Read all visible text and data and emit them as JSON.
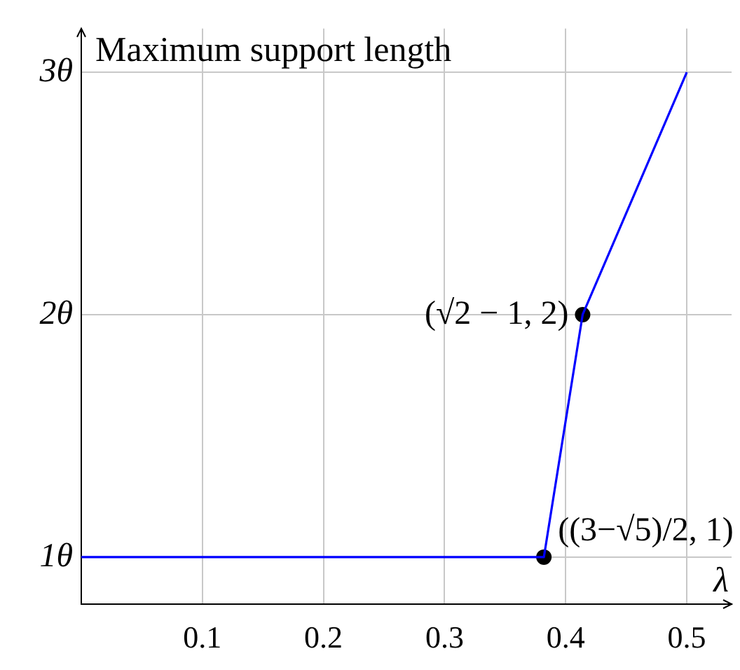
{
  "chart_data": {
    "type": "line",
    "xlabel": "λ",
    "ylabel": "Maximum support length",
    "series": [
      {
        "color": "#0000ff",
        "x": [
          0,
          0.382,
          0.414,
          0.5
        ],
        "values": [
          1,
          1,
          2,
          3
        ],
        "marker": "none"
      },
      {
        "type": "scatter",
        "color": "#000000",
        "x": [
          0.382,
          0.414
        ],
        "values": [
          1,
          2
        ],
        "marker": "circle"
      }
    ],
    "xlim": [
      0,
      0.537
    ],
    "xticks": [
      0.1,
      0.2,
      0.3,
      0.4,
      0.5
    ],
    "ylim": [
      0.806,
      3.18
    ],
    "yticks": [
      {
        "value": 1,
        "label": "1θ"
      },
      {
        "value": 2,
        "label": "2θ"
      },
      {
        "value": 3,
        "label": "3θ"
      }
    ],
    "grid": true,
    "annotations": [
      {
        "text": "((3−√5)/2, 1)",
        "x": 0.382,
        "y": 1
      },
      {
        "text": "(√2 − 1, 2)",
        "x": 0.414,
        "y": 2
      }
    ]
  }
}
